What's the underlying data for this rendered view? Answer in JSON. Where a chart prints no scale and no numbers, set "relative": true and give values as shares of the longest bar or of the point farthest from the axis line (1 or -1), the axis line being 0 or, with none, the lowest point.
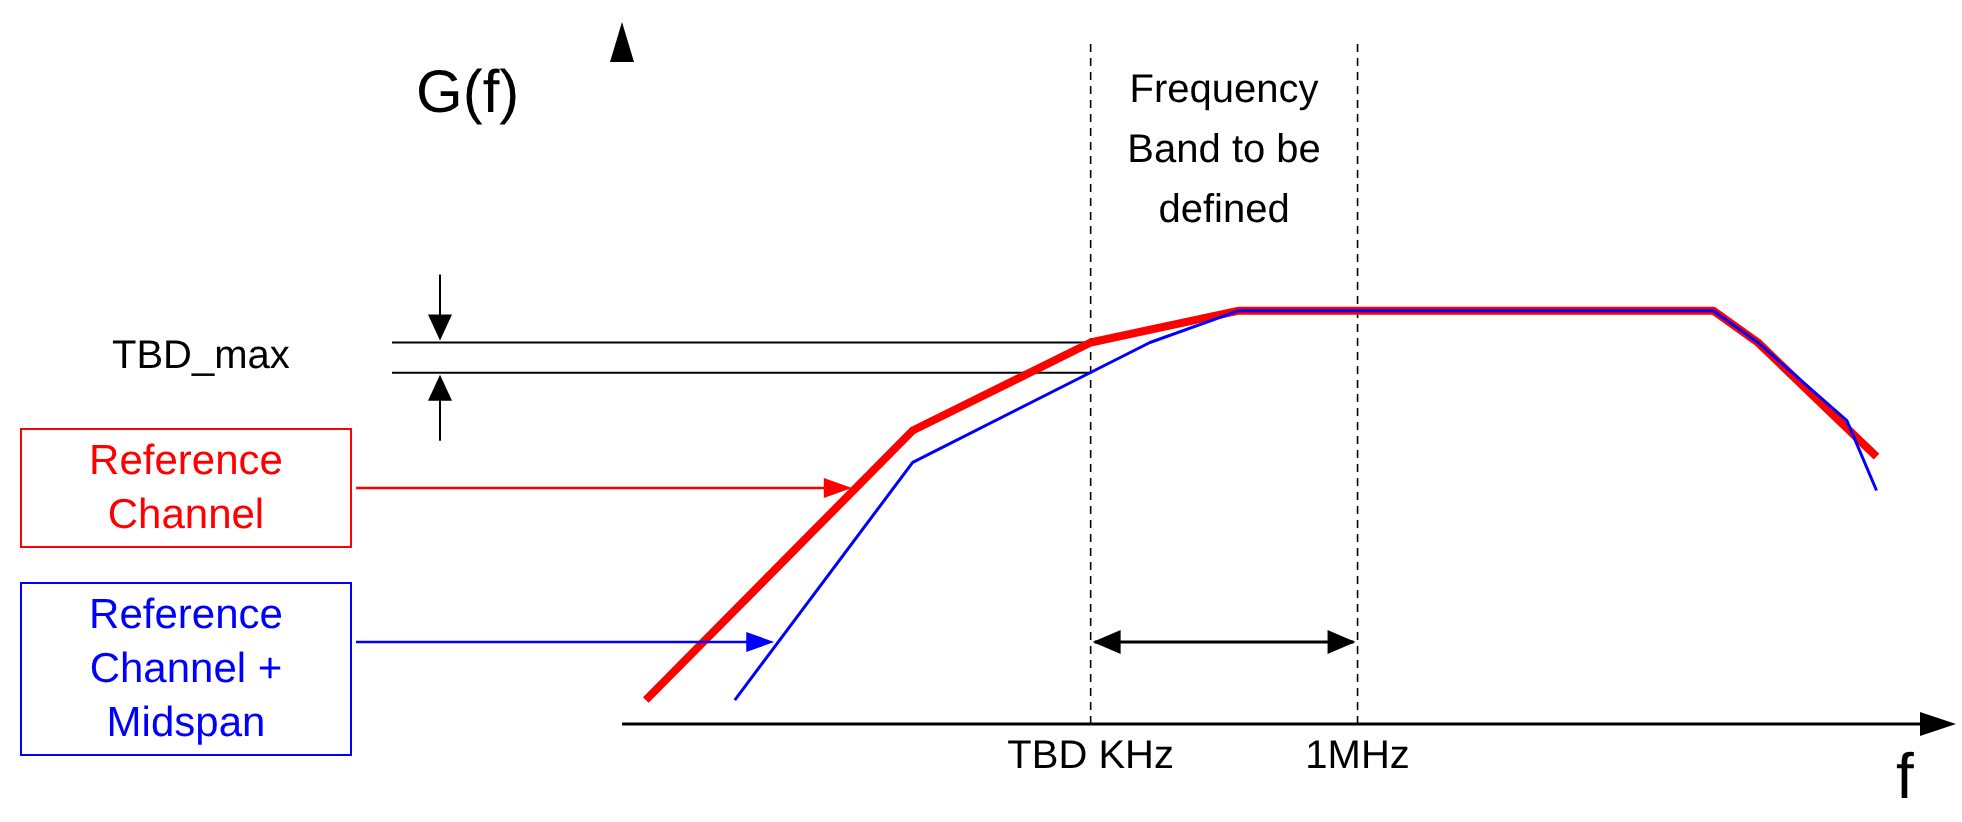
{
  "chart_data": {
    "type": "line",
    "relative": true,
    "ylabel": "G(f)",
    "xlabel": "f",
    "legend": "left",
    "categories": [
      null,
      null,
      null,
      null,
      null,
      null,
      null,
      null,
      null,
      null,
      null,
      null,
      null,
      null,
      null,
      null,
      null,
      null,
      null,
      null,
      null,
      null,
      null,
      null,
      null,
      null,
      null,
      null,
      null,
      null,
      null,
      "TBD KHz",
      null,
      null,
      null,
      null,
      null,
      null,
      null,
      null,
      null,
      null,
      null,
      null,
      null,
      null,
      null,
      null,
      null,
      "1MHz",
      null,
      null,
      null,
      null,
      null,
      null,
      null,
      null,
      null,
      null,
      null,
      null,
      null,
      null,
      null,
      null,
      null,
      null,
      null,
      null,
      null,
      null,
      null,
      null,
      null,
      null,
      null,
      null,
      null,
      null,
      null,
      null,
      null,
      null,
      null,
      null,
      null,
      null
    ],
    "series": [
      {
        "name": "Reference Channel",
        "color": "#ff0000",
        "values": [
          null,
          0.058,
          null,
          null,
          null,
          null,
          null,
          null,
          null,
          null,
          null,
          null,
          null,
          null,
          null,
          null,
          null,
          null,
          null,
          0.71,
          null,
          null,
          null,
          null,
          null,
          null,
          null,
          null,
          null,
          null,
          null,
          0.923,
          null,
          null,
          null,
          null,
          null,
          null,
          null,
          null,
          null,
          1,
          null,
          null,
          null,
          null,
          null,
          null,
          null,
          null,
          null,
          null,
          null,
          null,
          null,
          null,
          null,
          null,
          null,
          null,
          null,
          null,
          null,
          null,
          null,
          null,
          null,
          null,
          null,
          null,
          null,
          null,
          null,
          1,
          null,
          null,
          0.923,
          null,
          null,
          null,
          null,
          null,
          null,
          null,
          0.647,
          null,
          null,
          null
        ]
      },
      {
        "name": "Reference Channel + Midspan",
        "color": "#0000ff",
        "values": [
          null,
          null,
          null,
          null,
          null,
          null,
          null,
          0.058,
          null,
          null,
          null,
          null,
          null,
          null,
          null,
          null,
          null,
          null,
          null,
          0.633,
          null,
          null,
          null,
          null,
          null,
          null,
          null,
          null,
          null,
          null,
          null,
          null,
          null,
          null,
          null,
          0.923,
          null,
          null,
          null,
          null,
          null,
          1,
          null,
          null,
          null,
          null,
          null,
          null,
          null,
          null,
          null,
          null,
          null,
          null,
          null,
          null,
          null,
          null,
          null,
          null,
          null,
          null,
          null,
          null,
          null,
          null,
          null,
          null,
          null,
          null,
          null,
          null,
          null,
          1,
          null,
          null,
          0.923,
          null,
          null,
          null,
          null,
          null,
          0.734,
          null,
          0.565,
          null,
          null,
          null
        ]
      }
    ],
    "ref_lines": [
      {
        "axis": "x",
        "value": "TBD KHz",
        "line_style": "dashed"
      },
      {
        "axis": "x",
        "value": "1MHz",
        "line_style": "dashed"
      },
      {
        "axis": "y",
        "value": 0.923,
        "label": "TBD_max"
      },
      {
        "axis": "y",
        "value": 0.85
      }
    ],
    "annotations": [
      "Frequency Band to be defined"
    ]
  }
}
